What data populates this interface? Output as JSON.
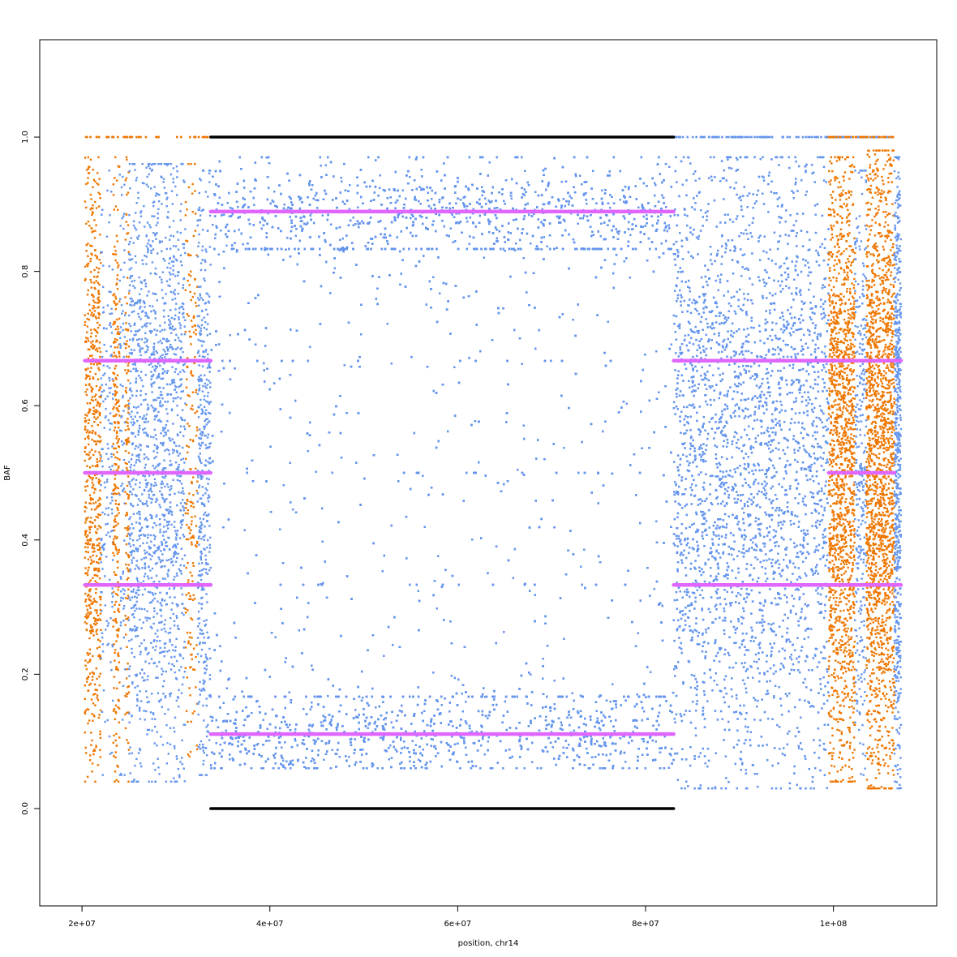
{
  "chart_data": {
    "type": "scatter",
    "title": "",
    "xlabel": "position, chr14",
    "ylabel": "BAF",
    "xlim": [
      15500000,
      111000000
    ],
    "ylim": [
      -0.145,
      1.145
    ],
    "grid": false,
    "legend": "none",
    "x_ticks": [
      {
        "value": 20000000,
        "label": "2e+07"
      },
      {
        "value": 40000000,
        "label": "4e+07"
      },
      {
        "value": 60000000,
        "label": "6e+07"
      },
      {
        "value": 80000000,
        "label": "8e+07"
      },
      {
        "value": 100000000,
        "label": "1e+08"
      }
    ],
    "y_ticks": [
      {
        "value": 0.0,
        "label": "0.0"
      },
      {
        "value": 0.2,
        "label": "0.2"
      },
      {
        "value": 0.4,
        "label": "0.4"
      },
      {
        "value": 0.6,
        "label": "0.6"
      },
      {
        "value": 0.8,
        "label": "0.8"
      },
      {
        "value": 1.0,
        "label": "1.0"
      }
    ],
    "colors": {
      "snp_blue": "#6495ED",
      "snp_orange": "#EE7600",
      "segment_magenta": "#E066FF",
      "segment_black": "#000000"
    },
    "point_regions": [
      {
        "color": "snp_orange",
        "x": [
          20300000,
          22000000
        ],
        "y": [
          0.04,
          0.97
        ],
        "mode": "het",
        "spread": 0.15,
        "count": 650
      },
      {
        "color": "snp_blue",
        "x": [
          22000000,
          23300000
        ],
        "y": [
          0.05,
          0.95
        ],
        "mode": "het",
        "spread": 0.15,
        "count": 160
      },
      {
        "color": "snp_orange",
        "x": [
          23300000,
          24000000
        ],
        "y": [
          0.04,
          0.97
        ],
        "mode": "het",
        "spread": 0.15,
        "count": 260
      },
      {
        "color": "snp_blue",
        "x": [
          24000000,
          24600000
        ],
        "y": [
          0.05,
          0.95
        ],
        "mode": "het",
        "spread": 0.15,
        "count": 80
      },
      {
        "color": "snp_orange",
        "x": [
          24600000,
          25000000
        ],
        "y": [
          0.04,
          0.97
        ],
        "mode": "het",
        "spread": 0.15,
        "count": 140
      },
      {
        "color": "snp_blue",
        "x": [
          25000000,
          31000000
        ],
        "y": [
          0.04,
          0.96
        ],
        "mode": "het",
        "spread": 0.15,
        "count": 1500
      },
      {
        "color": "snp_orange",
        "x": [
          31000000,
          32300000
        ],
        "y": [
          0.04,
          0.96
        ],
        "mode": "het",
        "spread": 0.15,
        "count": 190
      },
      {
        "color": "snp_blue",
        "x": [
          32300000,
          33700000
        ],
        "y": [
          0.05,
          0.95
        ],
        "mode": "het",
        "spread": 0.15,
        "count": 420
      },
      {
        "color": "snp_blue",
        "x": [
          33700000,
          83000000
        ],
        "y": [
          0.06,
          0.97
        ],
        "mode": "loh",
        "spread": 0.03,
        "count": 11000
      },
      {
        "color": "snp_blue",
        "x": [
          83000000,
          99500000
        ],
        "y": [
          0.03,
          0.97
        ],
        "mode": "het",
        "spread": 0.15,
        "count": 5500
      },
      {
        "color": "snp_orange",
        "x": [
          99500000,
          102300000
        ],
        "y": [
          0.04,
          0.97
        ],
        "mode": "het",
        "spread": 0.15,
        "count": 1500
      },
      {
        "color": "snp_blue",
        "x": [
          102300000,
          103500000
        ],
        "y": [
          0.05,
          0.95
        ],
        "mode": "het",
        "spread": 0.15,
        "count": 320
      },
      {
        "color": "snp_orange",
        "x": [
          103500000,
          106500000
        ],
        "y": [
          0.03,
          0.98
        ],
        "mode": "het",
        "spread": 0.15,
        "count": 1800
      },
      {
        "color": "snp_blue",
        "x": [
          106500000,
          107200000
        ],
        "y": [
          0.03,
          0.97
        ],
        "mode": "het",
        "spread": 0.15,
        "count": 600
      }
    ],
    "homozygous_bands": [
      {
        "y": 1.0,
        "x": [
          20300000,
          33700000
        ],
        "color": "snp_orange",
        "count": 40
      },
      {
        "y": 1.0,
        "x": [
          83000000,
          107200000
        ],
        "color": "snp_blue",
        "count": 120
      },
      {
        "y": 1.0,
        "x": [
          99500000,
          106500000
        ],
        "color": "snp_orange",
        "count": 45
      }
    ],
    "series": [
      {
        "color": "segment_magenta",
        "segments": [
          {
            "x": [
              20300000,
              33700000
            ],
            "y": 0.5
          },
          {
            "x": [
              99500000,
              106500000
            ],
            "y": 0.5
          },
          {
            "x": [
              20300000,
              33700000
            ],
            "y": 0.667
          },
          {
            "x": [
              20300000,
              33700000
            ],
            "y": 0.333
          },
          {
            "x": [
              83000000,
              107200000
            ],
            "y": 0.667
          },
          {
            "x": [
              83000000,
              107200000
            ],
            "y": 0.333
          },
          {
            "x": [
              33700000,
              83000000
            ],
            "y": 0.889
          },
          {
            "x": [
              33700000,
              83000000
            ],
            "y": 0.111
          }
        ]
      },
      {
        "color": "segment_black",
        "segments": [
          {
            "x": [
              33700000,
              83000000
            ],
            "y": 1.0
          },
          {
            "x": [
              33700000,
              83000000
            ],
            "y": 0.0
          }
        ]
      }
    ]
  }
}
